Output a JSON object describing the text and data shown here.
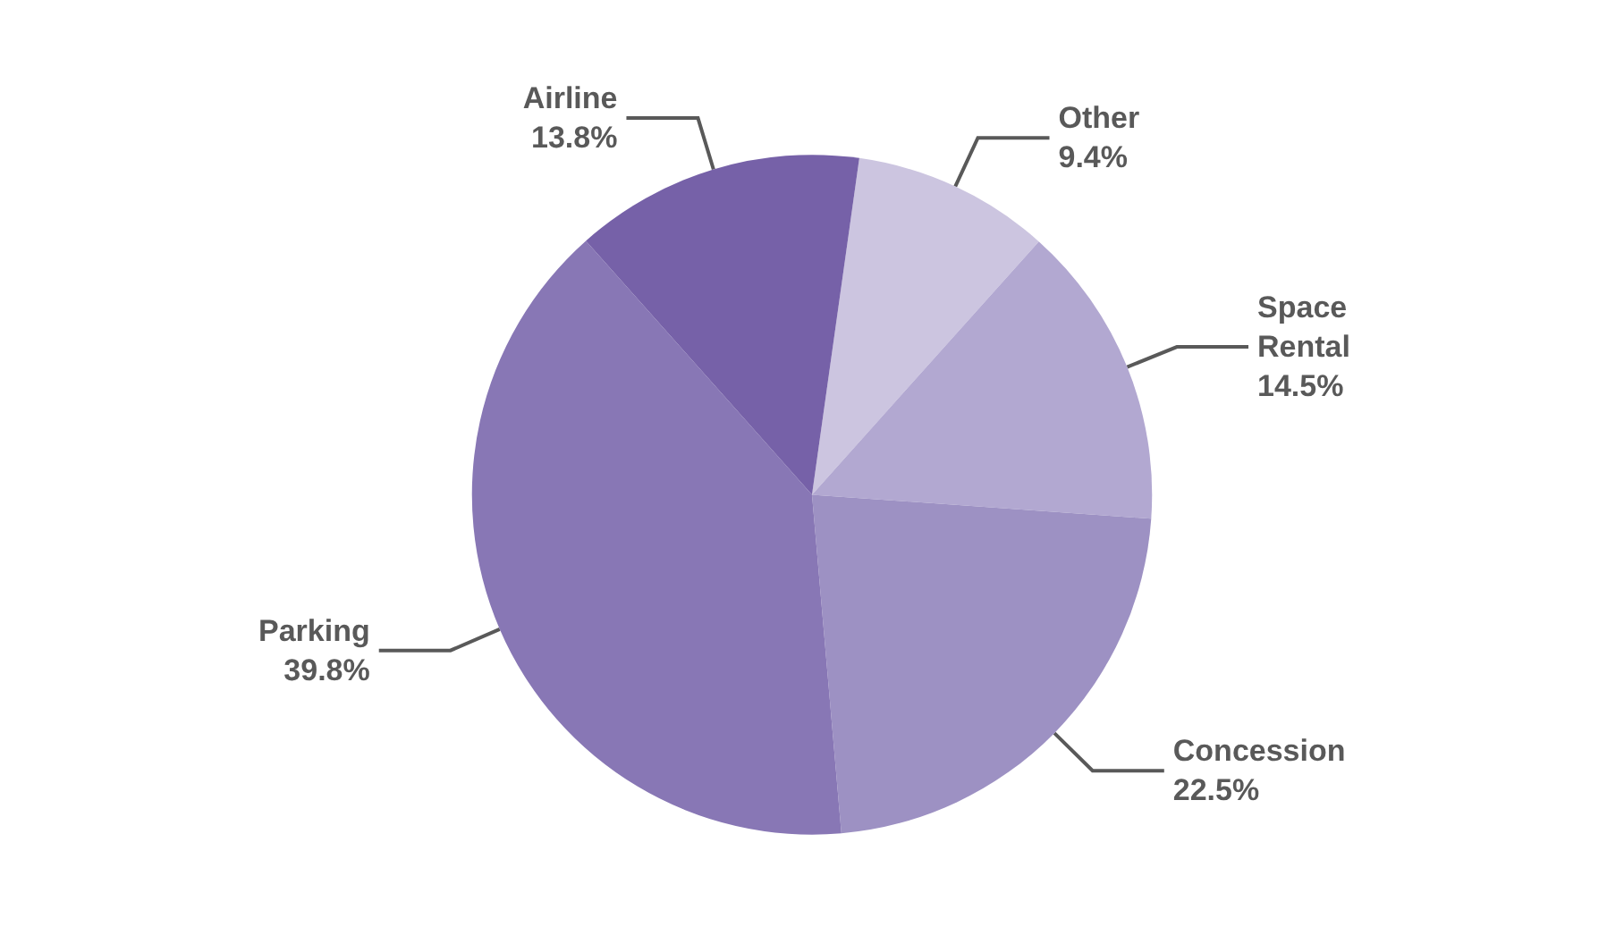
{
  "chart_data": {
    "type": "pie",
    "categories": [
      "Other",
      "Space Rental",
      "Concession",
      "Parking",
      "Airline"
    ],
    "values": [
      9.4,
      14.5,
      22.5,
      39.8,
      13.8
    ],
    "colors": [
      "#ccc5e0",
      "#b2a8d1",
      "#9d91c3",
      "#8877b5",
      "#7661a8"
    ],
    "value_labels": [
      "9.4%",
      "14.5%",
      "22.5%",
      "39.8%",
      "13.8%"
    ],
    "legend": false
  }
}
